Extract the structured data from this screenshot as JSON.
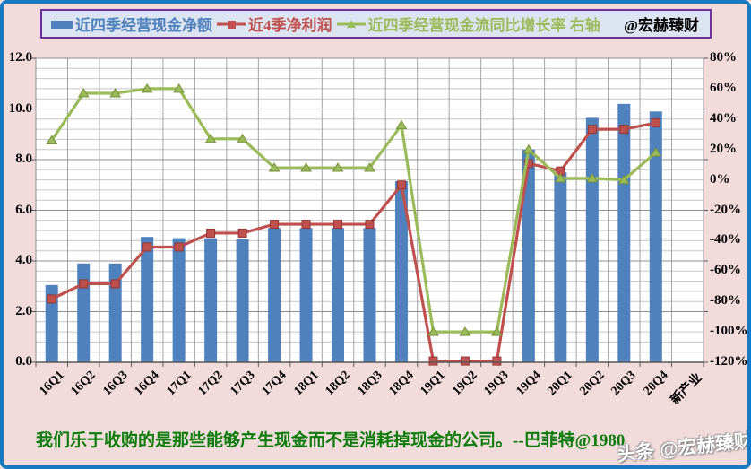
{
  "legend": {
    "credit": "@宏赫臻财"
  },
  "chart_data": {
    "type": "bar",
    "title": "",
    "legend_position": "top",
    "grid": true,
    "categories": [
      "16Q1",
      "16Q2",
      "16Q3",
      "16Q4",
      "17Q1",
      "17Q2",
      "17Q3",
      "17Q4",
      "18Q1",
      "18Q2",
      "18Q3",
      "18Q4",
      "19Q1",
      "19Q2",
      "19Q3",
      "19Q4",
      "20Q1",
      "20Q2",
      "20Q3",
      "20Q4"
    ],
    "extra_category": "新产业",
    "series": [
      {
        "name": "近四季经营现金净额",
        "type": "bar",
        "axis": "left",
        "color": "#4f81bd",
        "values": [
          3.05,
          3.9,
          3.9,
          4.95,
          4.9,
          4.9,
          4.85,
          5.3,
          5.3,
          5.3,
          5.3,
          7.15,
          0,
          0,
          0,
          8.4,
          7.5,
          9.65,
          10.2,
          9.9
        ]
      },
      {
        "name": "近4季净利润",
        "type": "line",
        "marker": "square",
        "axis": "left",
        "color": "#c0504d",
        "marker_border": "#943634",
        "values": [
          2.5,
          3.1,
          3.1,
          4.55,
          4.55,
          5.1,
          5.1,
          5.45,
          5.45,
          5.45,
          5.45,
          7.0,
          0.05,
          0.05,
          0.05,
          7.85,
          7.55,
          9.2,
          9.2,
          9.45
        ]
      },
      {
        "name": "近四季经营现金流同比增长率 右轴",
        "type": "line",
        "marker": "triangle",
        "axis": "right",
        "color": "#9bbb59",
        "marker_border": "#77933c",
        "values": [
          26,
          57,
          57,
          60,
          60,
          27,
          27,
          8,
          8,
          8,
          8,
          36,
          -100,
          -100,
          -100,
          20,
          1,
          1,
          0,
          18
        ]
      }
    ],
    "left_axis": {
      "min": 0,
      "max": 12,
      "major_step": 2,
      "minor_step": 0.4,
      "tick_labels": [
        "12.0",
        "10.0",
        "8.0",
        "6.0",
        "4.0",
        "2.0",
        "0.0"
      ]
    },
    "right_axis": {
      "min": -120,
      "max": 80,
      "major_step": 20,
      "tick_labels": [
        "80%",
        "60%",
        "40%",
        "20%",
        "0%",
        "-20%",
        "-40%",
        "-60%",
        "-80%",
        "-100%",
        "-120%"
      ]
    }
  },
  "footer": {
    "quote": "我们乐于收购的是那些能够产生现金而不是消耗掉现金的公司。--巴菲特@1980"
  },
  "watermark": "头条 @宏赫臻财",
  "colors": {
    "frame_border": "#1779c2",
    "background": "#f2dcdb",
    "plot_bg": "#ffffff",
    "legend_bg": "#dce3f1",
    "legend_border": "#7030a0",
    "grid_major": "#8f8f8f",
    "grid_minor": "#c6c6c6",
    "grid_vertical": "#a3a3a3",
    "axis_line": "#595959",
    "quote_green": "#0b7c0b"
  }
}
